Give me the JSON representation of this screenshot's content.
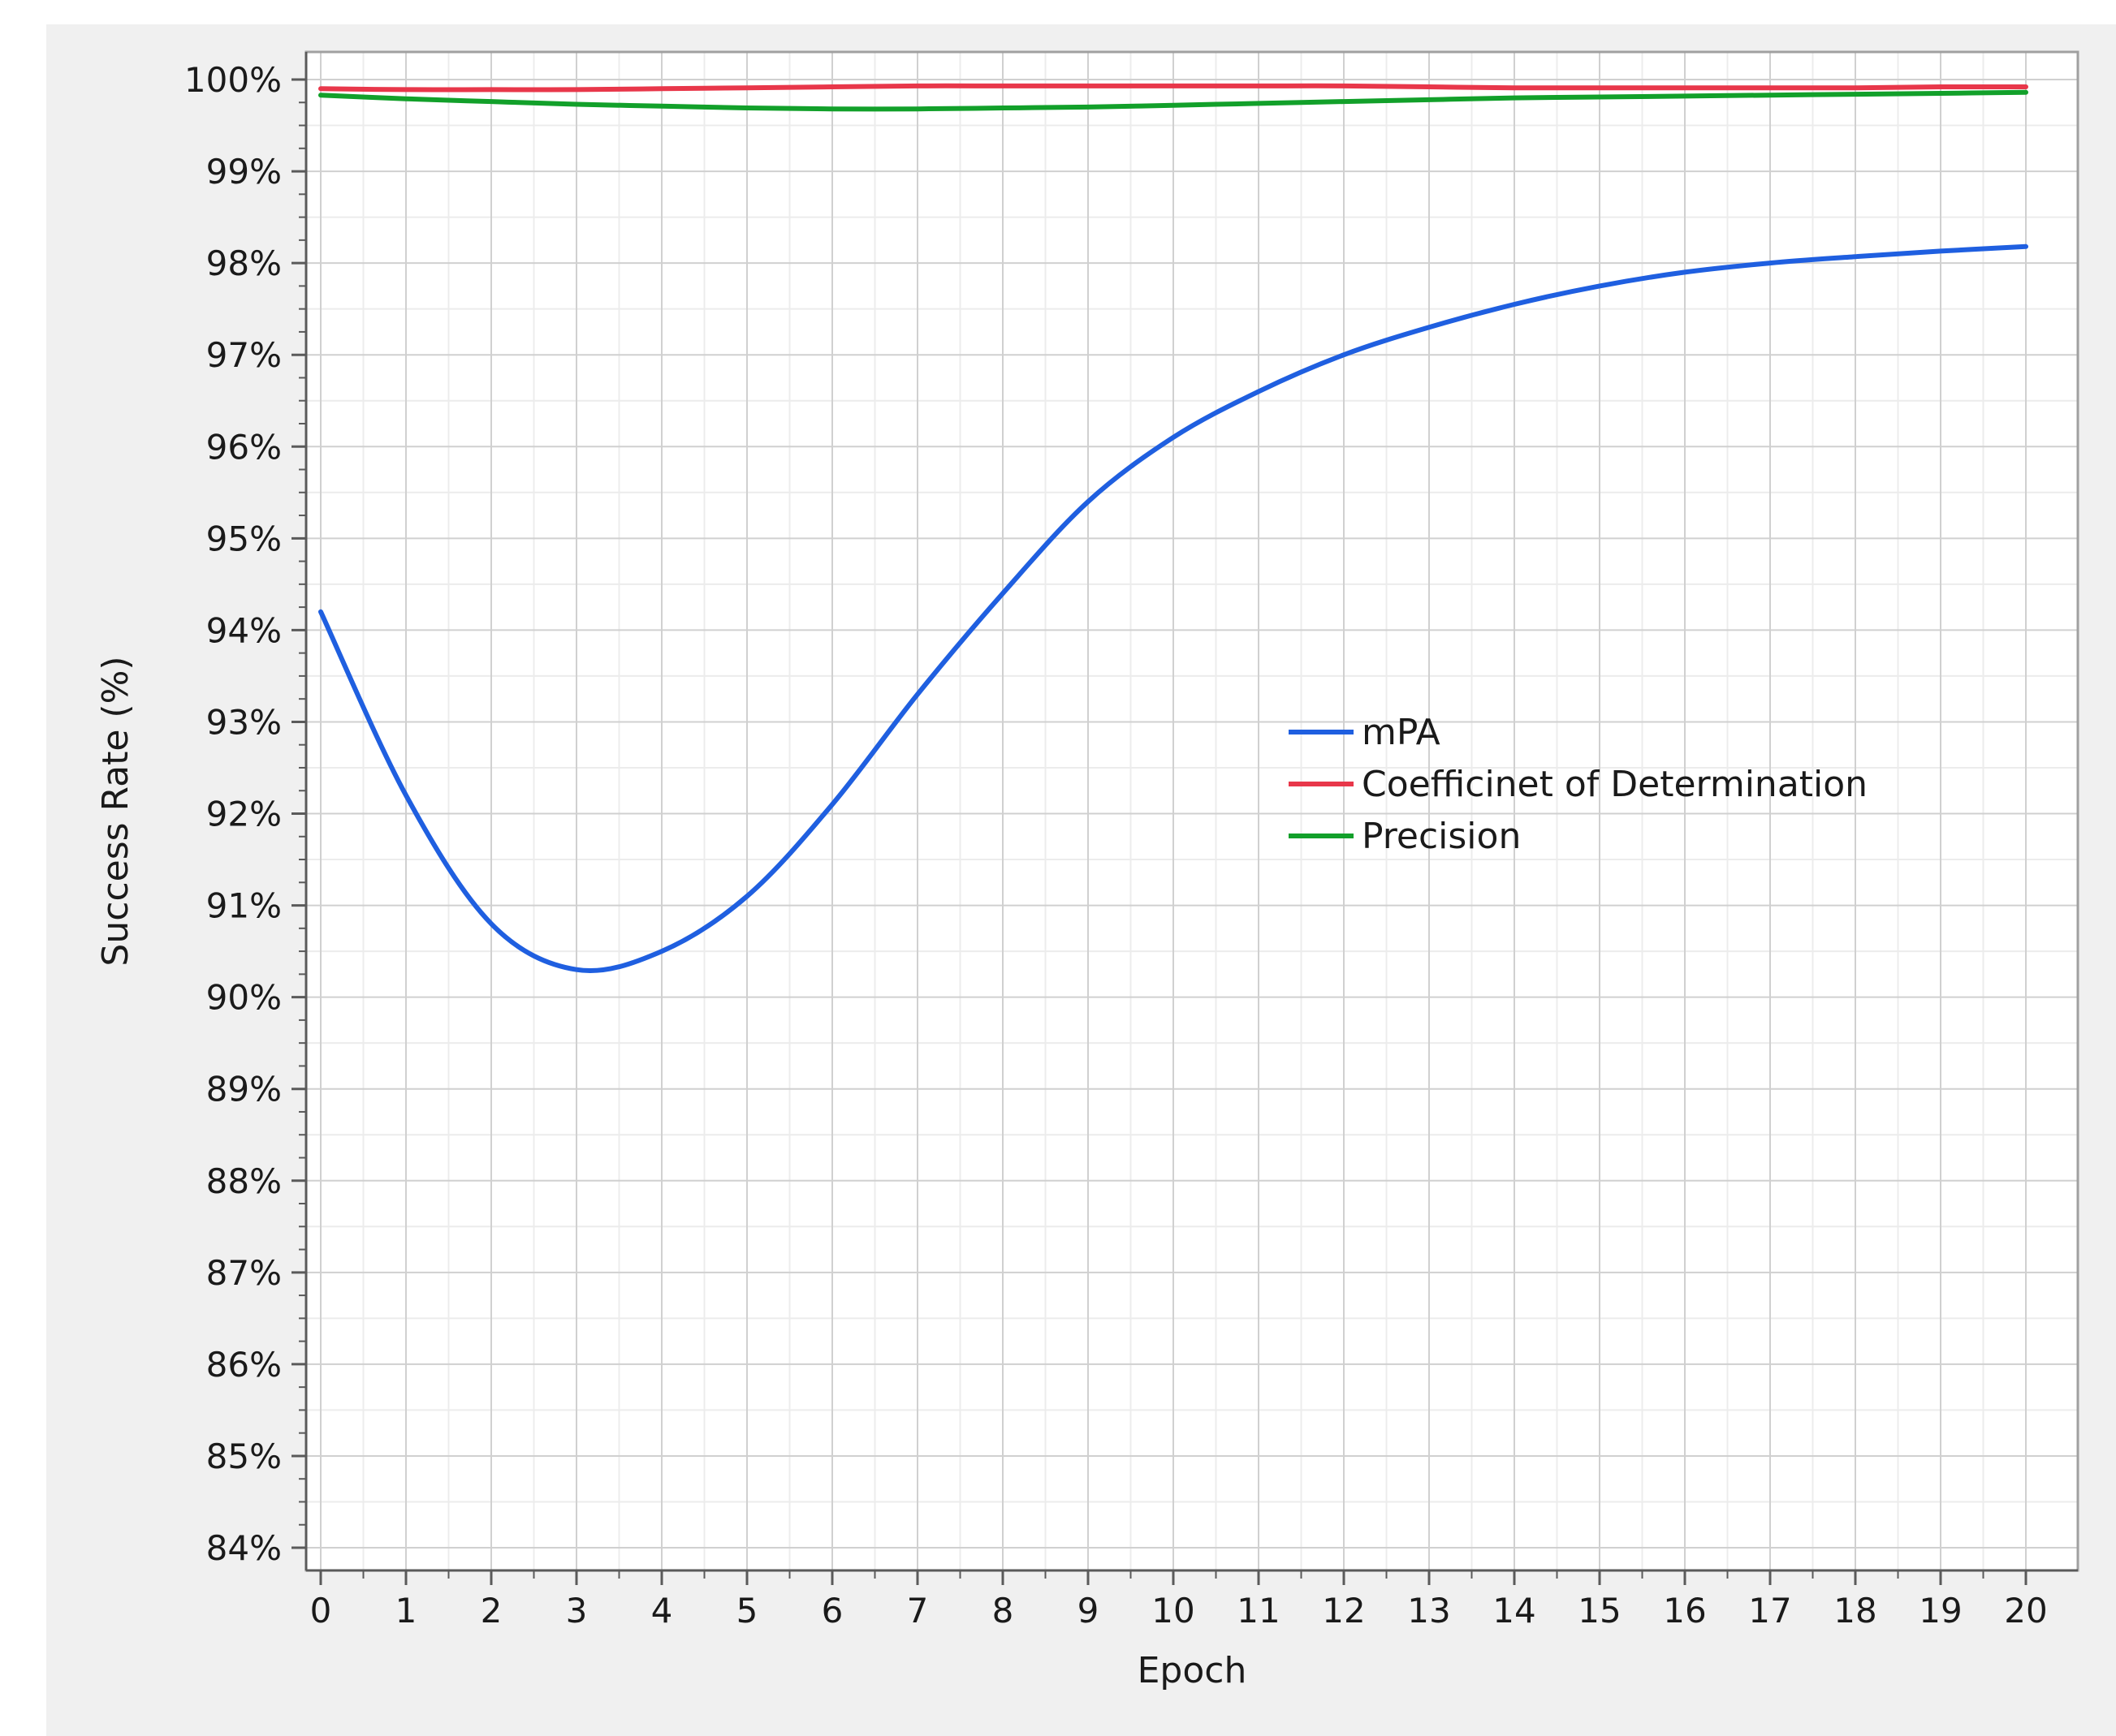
{
  "chart_data": {
    "type": "line",
    "title": "",
    "xlabel": "Epoch",
    "ylabel": "Success Rate (%)",
    "xlim": [
      0,
      20
    ],
    "ylim": [
      84,
      100
    ],
    "x_ticks": [
      "0",
      "1",
      "2",
      "3",
      "4",
      "5",
      "6",
      "7",
      "8",
      "9",
      "10",
      "11",
      "12",
      "13",
      "14",
      "15",
      "16",
      "17",
      "18",
      "19",
      "20"
    ],
    "y_ticks": [
      "84%",
      "85%",
      "86%",
      "87%",
      "88%",
      "89%",
      "90%",
      "91%",
      "92%",
      "93%",
      "94%",
      "95%",
      "96%",
      "97%",
      "98%",
      "99%",
      "100%"
    ],
    "grid": true,
    "legend_position": "center-right",
    "x": [
      0,
      1,
      2,
      3,
      4,
      5,
      6,
      7,
      8,
      9,
      10,
      11,
      12,
      13,
      14,
      15,
      16,
      17,
      18,
      19,
      20
    ],
    "series": [
      {
        "name": "mPA",
        "color": "#1f5fe0",
        "values": [
          94.2,
          92.2,
          90.8,
          90.3,
          90.5,
          91.1,
          92.1,
          93.3,
          94.4,
          95.4,
          96.1,
          96.6,
          97.0,
          97.3,
          97.55,
          97.75,
          97.9,
          98.0,
          98.07,
          98.13,
          98.18
        ]
      },
      {
        "name": "Coefficinet of Determination",
        "color": "#e8374a",
        "values": [
          99.9,
          99.89,
          99.89,
          99.89,
          99.9,
          99.91,
          99.92,
          99.93,
          99.93,
          99.93,
          99.93,
          99.93,
          99.93,
          99.92,
          99.91,
          99.91,
          99.91,
          99.91,
          99.91,
          99.92,
          99.92
        ]
      },
      {
        "name": "Precision",
        "color": "#12a02a",
        "values": [
          99.83,
          99.79,
          99.76,
          99.73,
          99.71,
          99.69,
          99.68,
          99.68,
          99.69,
          99.7,
          99.72,
          99.74,
          99.76,
          99.78,
          99.8,
          99.81,
          99.82,
          99.83,
          99.84,
          99.85,
          99.86
        ]
      }
    ]
  }
}
